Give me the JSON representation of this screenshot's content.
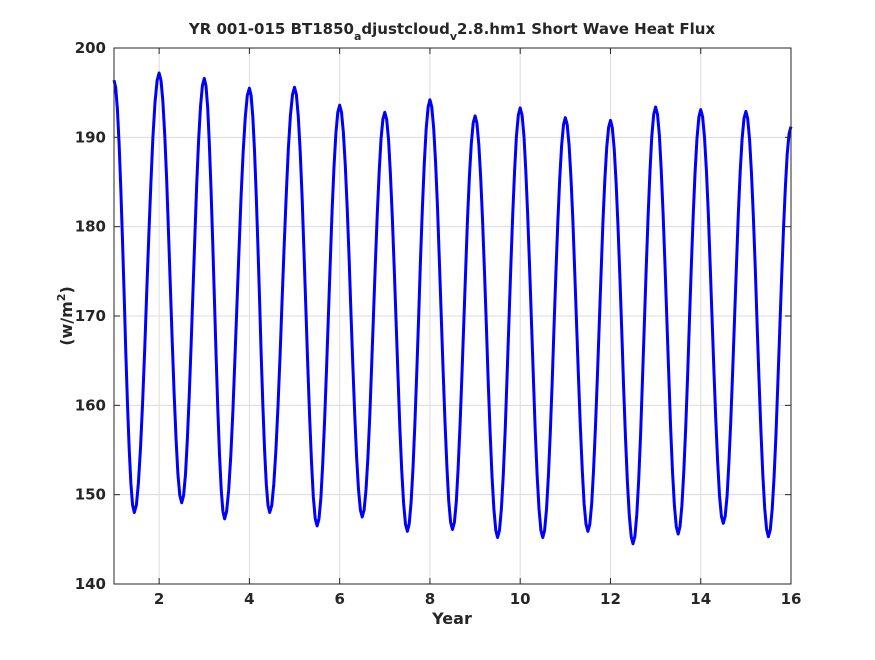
{
  "chart_data": {
    "type": "line",
    "title": "YR 001-015 BT1850",
    "title_sub1": "a",
    "title_mid": "djustcloud",
    "title_sub2": "v",
    "title_tail": "2.8.hm1 Short Wave Heat Flux",
    "xlabel": "Year",
    "ylabel_main": "(w/m",
    "ylabel_sup": "2",
    "ylabel_end": ")",
    "xlim": [
      1,
      16
    ],
    "ylim": [
      140,
      200
    ],
    "xticks": [
      2,
      4,
      6,
      8,
      10,
      12,
      14,
      16
    ],
    "yticks": [
      140,
      150,
      160,
      170,
      180,
      190,
      200
    ],
    "xtick_labels": [
      "2",
      "4",
      "6",
      "8",
      "10",
      "12",
      "14",
      "16"
    ],
    "ytick_labels": [
      "140",
      "150",
      "160",
      "170",
      "180",
      "190",
      "200"
    ],
    "grid": true,
    "color": "#0000ff",
    "series": [
      {
        "peaks": [
          {
            "x": 1.0,
            "y": 196.4
          },
          {
            "x": 2.0,
            "y": 197.2
          },
          {
            "x": 3.0,
            "y": 196.6
          },
          {
            "x": 4.0,
            "y": 195.5
          },
          {
            "x": 5.0,
            "y": 195.6
          },
          {
            "x": 6.0,
            "y": 193.6
          },
          {
            "x": 7.0,
            "y": 192.8
          },
          {
            "x": 8.0,
            "y": 194.2
          },
          {
            "x": 9.0,
            "y": 192.4
          },
          {
            "x": 10.0,
            "y": 193.3
          },
          {
            "x": 11.0,
            "y": 192.2
          },
          {
            "x": 12.0,
            "y": 191.9
          },
          {
            "x": 13.0,
            "y": 193.4
          },
          {
            "x": 14.0,
            "y": 193.1
          },
          {
            "x": 15.0,
            "y": 192.9
          }
        ],
        "troughs": [
          {
            "x": 1.45,
            "y": 148.0
          },
          {
            "x": 2.5,
            "y": 149.1
          },
          {
            "x": 3.45,
            "y": 147.3
          },
          {
            "x": 4.45,
            "y": 148.0
          },
          {
            "x": 5.5,
            "y": 146.5
          },
          {
            "x": 6.5,
            "y": 147.5
          },
          {
            "x": 7.5,
            "y": 145.9
          },
          {
            "x": 8.5,
            "y": 146.1
          },
          {
            "x": 9.5,
            "y": 145.2
          },
          {
            "x": 10.5,
            "y": 145.2
          },
          {
            "x": 11.5,
            "y": 145.9
          },
          {
            "x": 12.5,
            "y": 144.5
          },
          {
            "x": 13.5,
            "y": 145.6
          },
          {
            "x": 14.5,
            "y": 146.8
          },
          {
            "x": 15.5,
            "y": 145.3
          }
        ],
        "end": {
          "x": 16.0,
          "y": 191.2
        }
      }
    ]
  }
}
